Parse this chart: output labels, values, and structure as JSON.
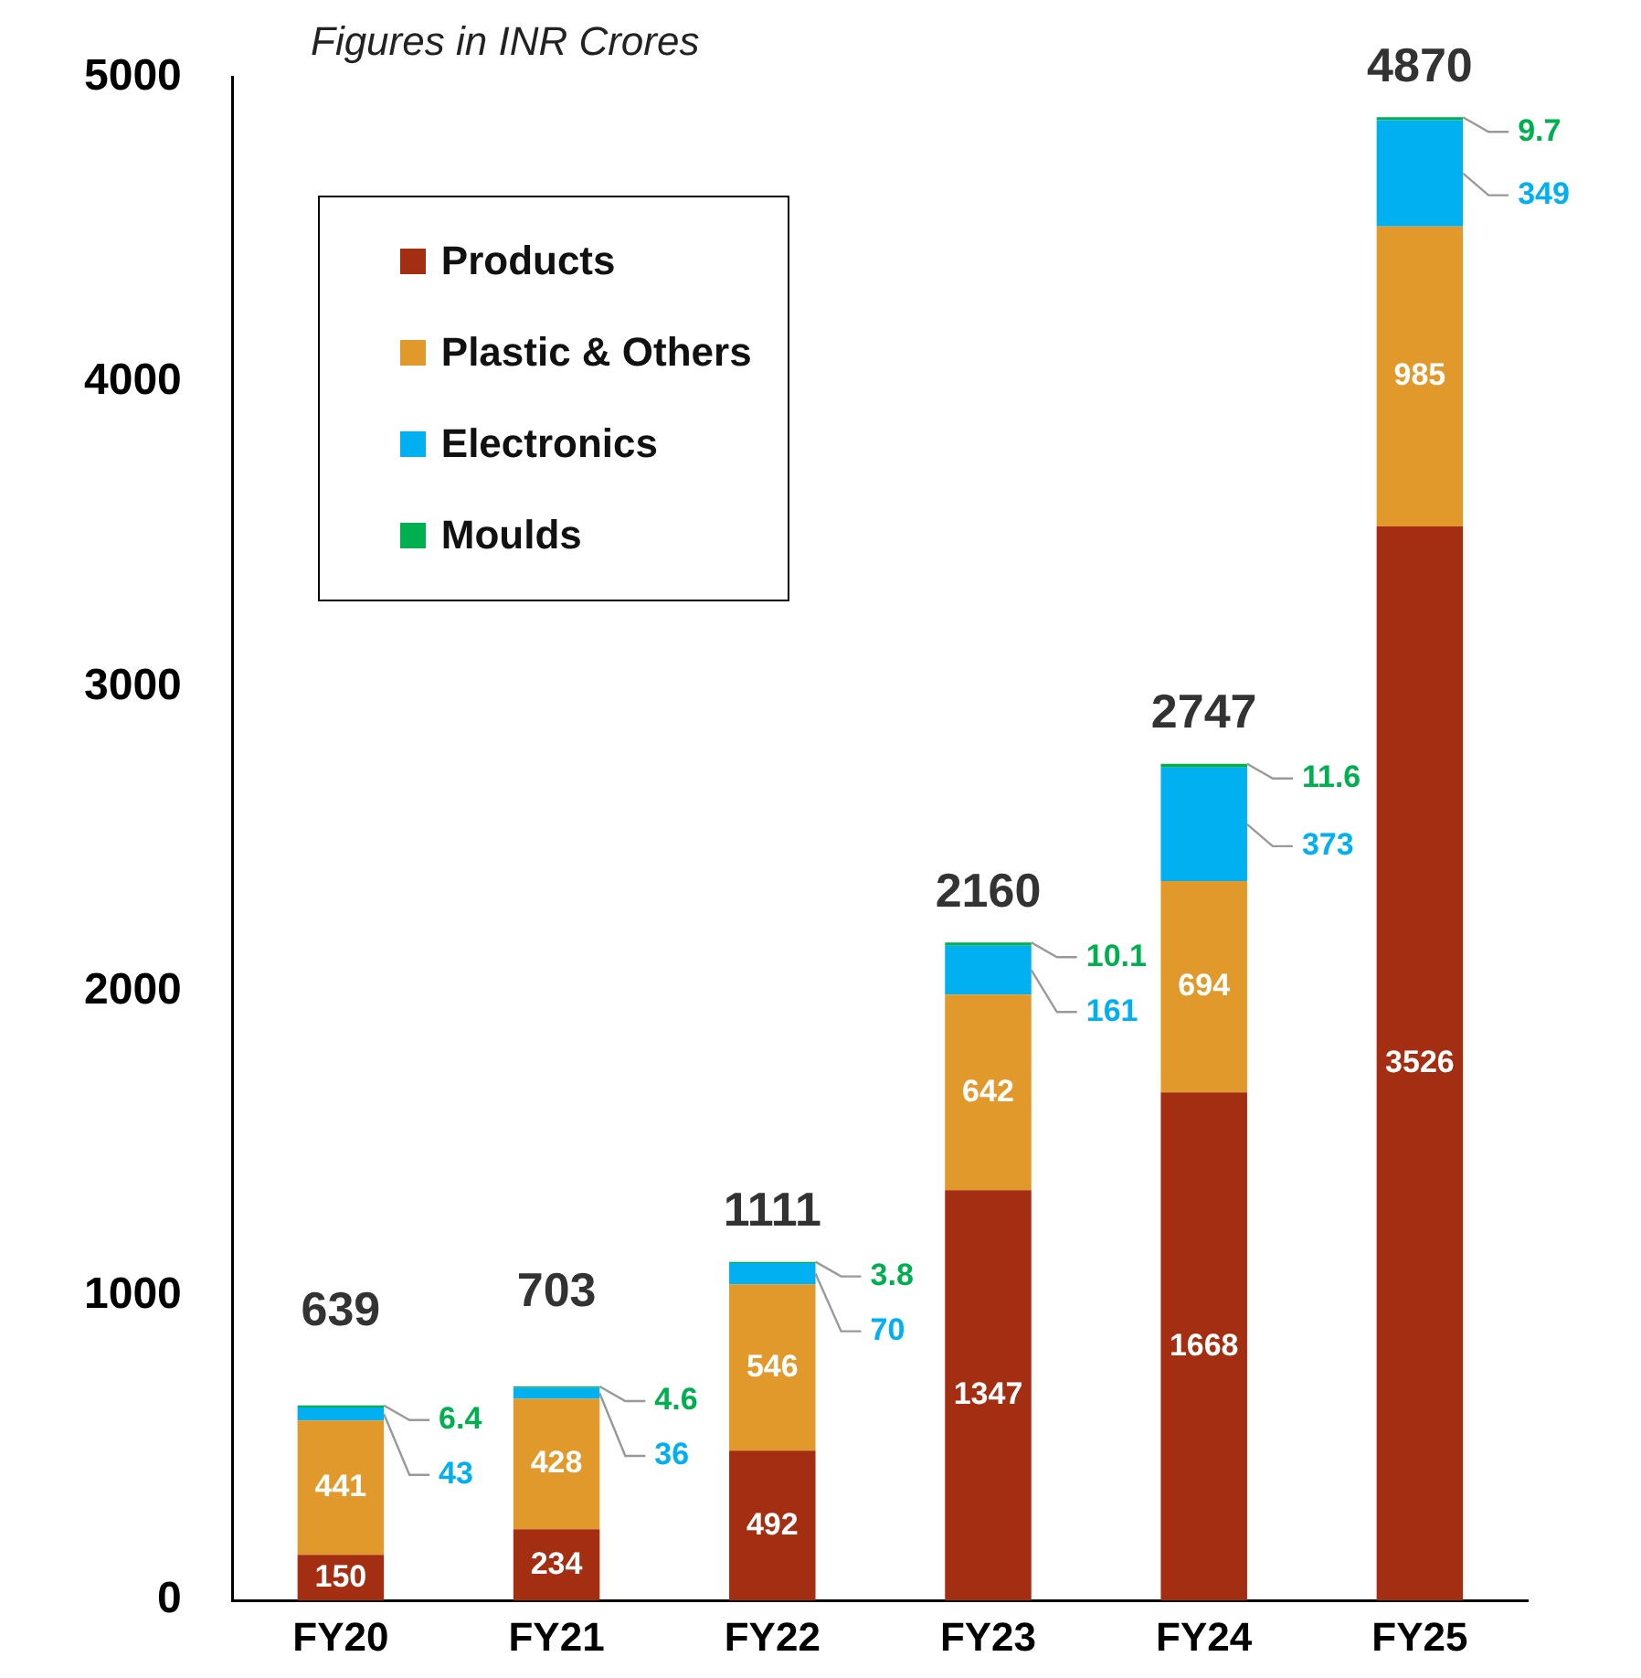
{
  "chart_data": {
    "type": "bar",
    "stacked": true,
    "categories": [
      "FY20",
      "FY21",
      "FY22",
      "FY23",
      "FY24",
      "FY25"
    ],
    "series": [
      {
        "name": "Products",
        "color": "#a32e12",
        "values": [
          150,
          234,
          492,
          1347,
          1668,
          3526
        ]
      },
      {
        "name": "Plastic & Others",
        "color": "#e2992b",
        "values": [
          441,
          428,
          546,
          642,
          694,
          985
        ]
      },
      {
        "name": "Electronics",
        "color": "#00b0f0",
        "values": [
          43,
          36,
          70,
          161,
          373,
          349
        ]
      },
      {
        "name": "Moulds",
        "color": "#00b050",
        "values": [
          6.4,
          4.6,
          3.8,
          10.1,
          11.6,
          9.7
        ]
      }
    ],
    "totals": [
      "639",
      "703",
      "1111",
      "2160",
      "2747",
      "4870"
    ],
    "ylim": [
      0,
      5000
    ],
    "yticks": [
      0,
      1000,
      2000,
      3000,
      4000,
      5000
    ],
    "grid": false,
    "legend": "top left",
    "data_labels": true,
    "annotations": [
      "Figures in INR Crores"
    ]
  }
}
